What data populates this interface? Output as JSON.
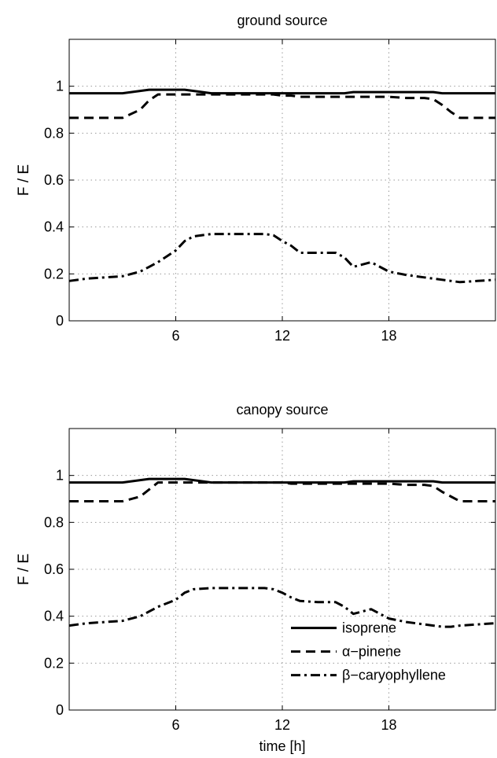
{
  "chart_data": [
    {
      "type": "line",
      "title": "ground source",
      "xlabel": "",
      "ylabel": "F / E",
      "xlim": [
        0,
        24
      ],
      "ylim": [
        0,
        1.2
      ],
      "xticks": [
        6,
        12,
        18
      ],
      "yticks": [
        0,
        0.2,
        0.4,
        0.6,
        0.8,
        1
      ],
      "ytick_labels": [
        "0",
        "0.2",
        "0.4",
        "0.6",
        "0.8",
        "1"
      ],
      "grid": true,
      "x": [
        0,
        1,
        2,
        3,
        4,
        4.5,
        5,
        6,
        6.5,
        7,
        8,
        9,
        10,
        11,
        11.5,
        12,
        12.5,
        13,
        14,
        15,
        15.5,
        16,
        16.5,
        17,
        18,
        19,
        20,
        20.5,
        21,
        21.5,
        22,
        23,
        24
      ],
      "series": [
        {
          "name": "isoprene",
          "style": "solid",
          "values": [
            0.97,
            0.97,
            0.97,
            0.97,
            0.98,
            0.985,
            0.985,
            0.985,
            0.985,
            0.98,
            0.97,
            0.97,
            0.97,
            0.97,
            0.97,
            0.97,
            0.97,
            0.97,
            0.97,
            0.97,
            0.97,
            0.975,
            0.975,
            0.975,
            0.975,
            0.975,
            0.975,
            0.975,
            0.97,
            0.97,
            0.97,
            0.97,
            0.97
          ]
        },
        {
          "name": "α−pinene",
          "style": "dashed",
          "values": [
            0.865,
            0.865,
            0.865,
            0.865,
            0.9,
            0.94,
            0.965,
            0.965,
            0.965,
            0.965,
            0.965,
            0.965,
            0.965,
            0.965,
            0.965,
            0.96,
            0.96,
            0.955,
            0.955,
            0.955,
            0.955,
            0.955,
            0.955,
            0.955,
            0.955,
            0.95,
            0.95,
            0.945,
            0.92,
            0.89,
            0.865,
            0.865,
            0.865
          ]
        },
        {
          "name": "β−caryophyllene",
          "style": "dashdot",
          "values": [
            0.17,
            0.18,
            0.185,
            0.19,
            0.21,
            0.23,
            0.25,
            0.3,
            0.34,
            0.36,
            0.37,
            0.37,
            0.37,
            0.37,
            0.365,
            0.34,
            0.32,
            0.29,
            0.29,
            0.29,
            0.27,
            0.23,
            0.24,
            0.25,
            0.21,
            0.195,
            0.185,
            0.18,
            0.175,
            0.17,
            0.165,
            0.17,
            0.175
          ]
        }
      ]
    },
    {
      "type": "line",
      "title": "canopy source",
      "xlabel": "time [h]",
      "ylabel": "F / E",
      "xlim": [
        0,
        24
      ],
      "ylim": [
        0,
        1.2
      ],
      "xticks": [
        6,
        12,
        18
      ],
      "yticks": [
        0,
        0.2,
        0.4,
        0.6,
        0.8,
        1
      ],
      "ytick_labels": [
        "0",
        "0.2",
        "0.4",
        "0.6",
        "0.8",
        "1"
      ],
      "grid": true,
      "legend": "bottom-right",
      "x": [
        0,
        1,
        2,
        3,
        4,
        4.5,
        5,
        6,
        6.5,
        7,
        8,
        9,
        10,
        11,
        11.5,
        12,
        12.5,
        13,
        14,
        15,
        15.5,
        16,
        16.5,
        17,
        18,
        19,
        20,
        20.5,
        21,
        21.5,
        22,
        23,
        24
      ],
      "series": [
        {
          "name": "isoprene",
          "style": "solid",
          "values": [
            0.97,
            0.97,
            0.97,
            0.97,
            0.98,
            0.985,
            0.985,
            0.985,
            0.985,
            0.98,
            0.97,
            0.97,
            0.97,
            0.97,
            0.97,
            0.97,
            0.97,
            0.97,
            0.97,
            0.97,
            0.97,
            0.975,
            0.975,
            0.975,
            0.975,
            0.975,
            0.975,
            0.975,
            0.97,
            0.97,
            0.97,
            0.97,
            0.97
          ]
        },
        {
          "name": "α−pinene",
          "style": "dashed",
          "values": [
            0.89,
            0.89,
            0.89,
            0.89,
            0.91,
            0.94,
            0.97,
            0.97,
            0.97,
            0.97,
            0.97,
            0.97,
            0.97,
            0.97,
            0.97,
            0.97,
            0.965,
            0.965,
            0.965,
            0.965,
            0.965,
            0.965,
            0.965,
            0.965,
            0.965,
            0.96,
            0.96,
            0.955,
            0.93,
            0.91,
            0.89,
            0.89,
            0.89
          ]
        },
        {
          "name": "β−caryophyllene",
          "style": "dashdot",
          "values": [
            0.36,
            0.37,
            0.375,
            0.38,
            0.4,
            0.42,
            0.44,
            0.47,
            0.5,
            0.515,
            0.52,
            0.52,
            0.52,
            0.52,
            0.515,
            0.5,
            0.48,
            0.465,
            0.46,
            0.46,
            0.44,
            0.41,
            0.42,
            0.43,
            0.39,
            0.375,
            0.365,
            0.36,
            0.355,
            0.355,
            0.36,
            0.365,
            0.37
          ]
        }
      ]
    }
  ]
}
